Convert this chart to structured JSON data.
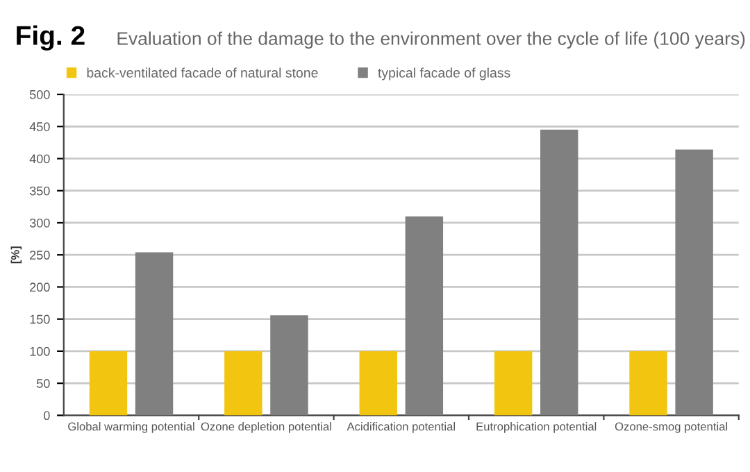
{
  "chart_data": {
    "type": "bar",
    "title": "Fig. 2",
    "subtitle": "Evaluation of the damage to the environment over the cycle of life (100 years)",
    "ylabel": "[%]",
    "categories": [
      "Global warming potential",
      "Ozone depletion potential",
      "Acidification potential",
      "Eutrophication potential",
      "Ozone-smog potential"
    ],
    "series": [
      {
        "name": "back-ventilated facade of natural stone",
        "color": "#f2c511",
        "values": [
          100,
          100,
          100,
          100,
          100
        ]
      },
      {
        "name": "typical facade of glass",
        "color": "#808080",
        "values": [
          254,
          156,
          310,
          445,
          414
        ]
      }
    ],
    "ylim": [
      0,
      500
    ],
    "yticks": [
      0,
      50,
      100,
      150,
      200,
      250,
      300,
      350,
      400,
      450,
      500
    ],
    "grid": "y",
    "legend": "top left"
  }
}
